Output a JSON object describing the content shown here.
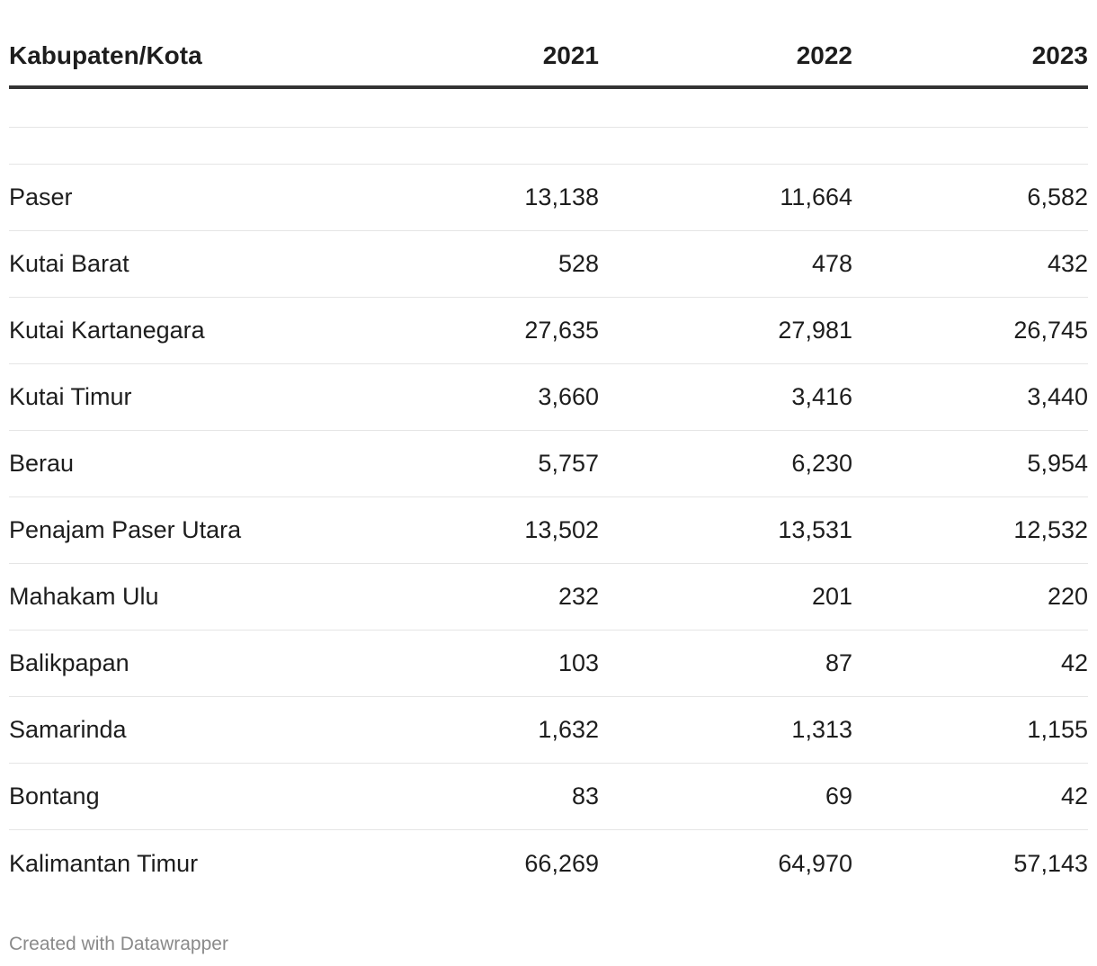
{
  "chart_data": {
    "type": "table",
    "columns": [
      "Kabupaten/Kota",
      "2021",
      "2022",
      "2023"
    ],
    "rows": [
      [
        "Paser",
        "13,138",
        "11,664",
        "6,582"
      ],
      [
        "Kutai Barat",
        "528",
        "478",
        "432"
      ],
      [
        "Kutai Kartanegara",
        "27,635",
        "27,981",
        "26,745"
      ],
      [
        "Kutai Timur",
        "3,660",
        "3,416",
        "3,440"
      ],
      [
        "Berau",
        "5,757",
        "6,230",
        "5,954"
      ],
      [
        "Penajam Paser Utara",
        "13,502",
        "13,531",
        "12,532"
      ],
      [
        "Mahakam Ulu",
        "232",
        "201",
        "220"
      ],
      [
        "Balikpapan",
        "103",
        "87",
        "42"
      ],
      [
        "Samarinda",
        "1,632",
        "1,313",
        "1,155"
      ],
      [
        "Bontang",
        "83",
        "69",
        "42"
      ],
      [
        "Kalimantan Timur",
        "66,269",
        "64,970",
        "57,143"
      ]
    ]
  },
  "footer": {
    "credit": "Created with Datawrapper"
  }
}
